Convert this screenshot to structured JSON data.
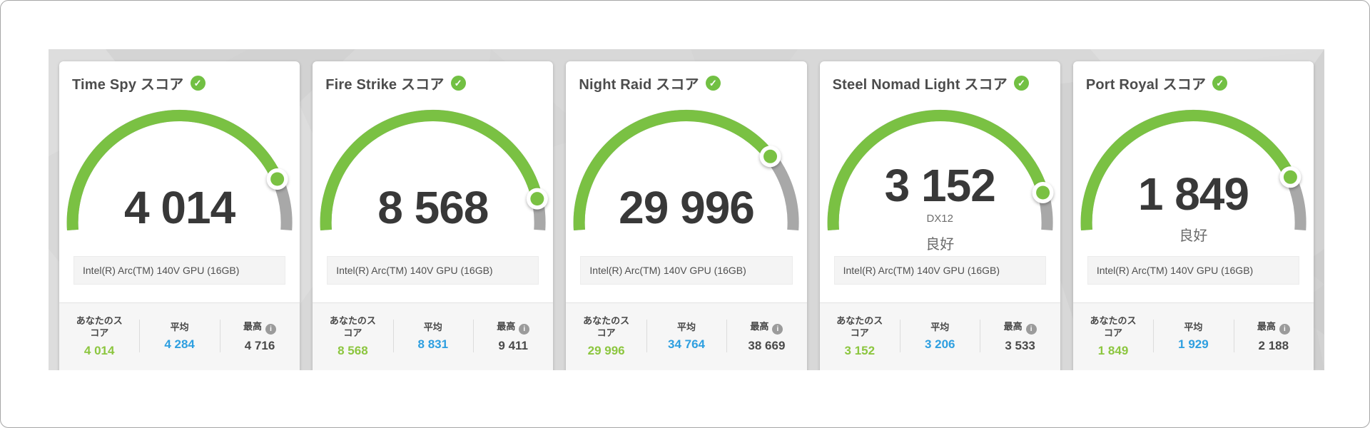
{
  "colors": {
    "arc_green": "#7ac143",
    "arc_gray": "#a8a8a8",
    "score_green": "#8cc63f",
    "avg_blue": "#2e9fe0",
    "band_bg": "#d8d8d8"
  },
  "labels": {
    "your_score": "あなたのスコア",
    "average": "平均",
    "best": "最高",
    "check_glyph": "✓",
    "info_glyph": "i"
  },
  "chart_data": [
    {
      "type": "gauge",
      "title": "Time Spy スコア",
      "score": 4014,
      "score_display": "4 014",
      "api": "",
      "grade": "",
      "gpu": "Intel(R) Arc(TM) 140V GPU (16GB)",
      "average": 4284,
      "average_display": "4 284",
      "best": 4716,
      "best_display": "4 716"
    },
    {
      "type": "gauge",
      "title": "Fire Strike スコア",
      "score": 8568,
      "score_display": "8 568",
      "api": "",
      "grade": "",
      "gpu": "Intel(R) Arc(TM) 140V GPU (16GB)",
      "average": 8831,
      "average_display": "8 831",
      "best": 9411,
      "best_display": "9 411"
    },
    {
      "type": "gauge",
      "title": "Night Raid スコア",
      "score": 29996,
      "score_display": "29 996",
      "api": "",
      "grade": "",
      "gpu": "Intel(R) Arc(TM) 140V GPU (16GB)",
      "average": 34764,
      "average_display": "34 764",
      "best": 38669,
      "best_display": "38 669"
    },
    {
      "type": "gauge",
      "title": "Steel Nomad Light スコア",
      "score": 3152,
      "score_display": "3 152",
      "api": "DX12",
      "grade": "良好",
      "gpu": "Intel(R) Arc(TM) 140V GPU (16GB)",
      "average": 3206,
      "average_display": "3 206",
      "best": 3533,
      "best_display": "3 533"
    },
    {
      "type": "gauge",
      "title": "Port Royal スコア",
      "score": 1849,
      "score_display": "1 849",
      "api": "",
      "grade": "良好",
      "gpu": "Intel(R) Arc(TM) 140V GPU (16GB)",
      "average": 1929,
      "average_display": "1 929",
      "best": 2188,
      "best_display": "2 188"
    }
  ]
}
